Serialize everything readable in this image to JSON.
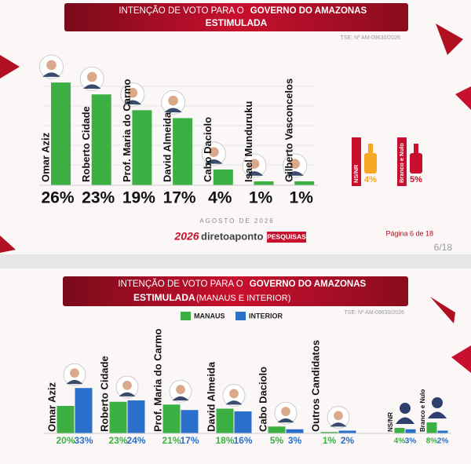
{
  "chart_data": [
    {
      "type": "bar",
      "title": "INTENÇÃO DE VOTO PARA O",
      "title_emphasis": "GOVERNO DO AMAZONAS",
      "subtitle": "ESTIMULADA",
      "registration": "TSE: Nº AM-09630/2026",
      "categories": [
        "Omar Aziz",
        "Roberto Cidade",
        "Prof. Maria do Carmo",
        "David Almeida",
        "Cabo Daciolo",
        "Isael Munduruku",
        "Gilberto Vasconcelos"
      ],
      "values": [
        26,
        23,
        19,
        17,
        4,
        1,
        1
      ],
      "value_labels": [
        "26%",
        "23%",
        "19%",
        "17%",
        "4%",
        "1%",
        "1%"
      ],
      "color": "#3cb043",
      "ylim": [
        0,
        30
      ],
      "others": {
        "categories": [
          "NS/NR",
          "Branco e Nulo"
        ],
        "values": [
          4,
          5
        ],
        "value_labels": [
          "4%",
          "5%"
        ],
        "colors": [
          "#f5a623",
          "#c8102e"
        ]
      },
      "date": "AGOSTO DE 2026",
      "footer": {
        "year": "2026",
        "brand": "diretoaponto",
        "brand_tag": "PESQUISAS"
      },
      "page_label": "Página 6 de 18",
      "page_counter": "6/18"
    },
    {
      "type": "grouped-bar",
      "title": "INTENÇÃO DE VOTO PARA O",
      "title_emphasis": "GOVERNO DO AMAZONAS",
      "subtitle": "ESTIMULADA",
      "subtitle_note": "(MANAUS E INTERIOR)",
      "registration": "TSE: Nº AM-09630/2026",
      "categories": [
        "Omar Aziz",
        "Roberto Cidade",
        "Prof. Maria do Carmo",
        "David Almeida",
        "Cabo Daciolo",
        "Outros Candidatos",
        "NS/NR",
        "Branco e Nulo"
      ],
      "series": [
        {
          "name": "MANAUS",
          "color": "#3cb043",
          "values": [
            20,
            23,
            21,
            18,
            5,
            1,
            4,
            8
          ],
          "value_labels": [
            "20%",
            "23%",
            "21%",
            "18%",
            "5%",
            "1%",
            "4%",
            "8%"
          ]
        },
        {
          "name": "INTERIOR",
          "color": "#2a6fc9",
          "values": [
            33,
            24,
            17,
            16,
            3,
            2,
            3,
            2
          ],
          "value_labels": [
            "33%",
            "24%",
            "17%",
            "16%",
            "3%",
            "2%",
            "3%",
            "2%"
          ]
        }
      ],
      "ylim": [
        0,
        40
      ]
    }
  ]
}
